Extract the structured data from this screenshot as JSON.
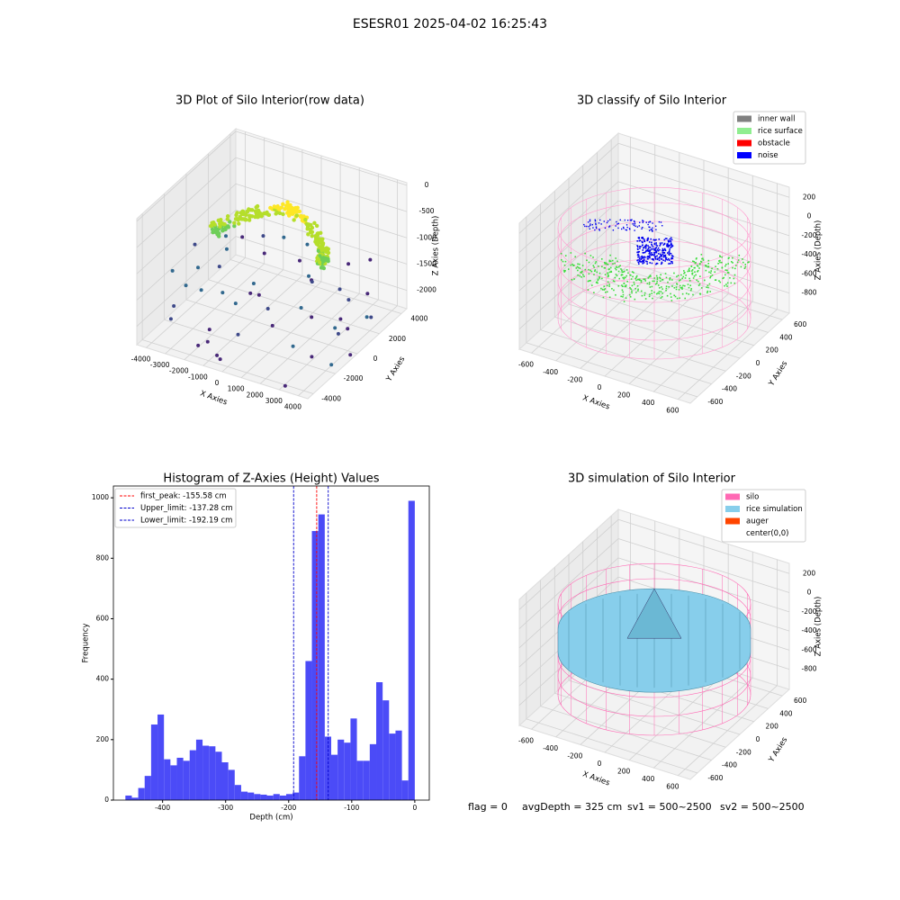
{
  "suptitle": "ESESR01 2025-04-02 16:25:43",
  "footer": [
    "flag = 0",
    "avgDepth = 325 cm",
    "sv1 = 500~2500",
    "sv2 = 500~2500"
  ],
  "chart_data": [
    {
      "type": "scatter3d",
      "title": "3D Plot of Silo Interior(row data)",
      "x_label": "X Axies",
      "y_label": "Y Axies",
      "z_label": "Z Axies (Depth)",
      "xlim": [
        -4500,
        4500
      ],
      "ylim": [
        -4500,
        4500
      ],
      "zlim": [
        -2350,
        50
      ],
      "xticks": [
        -4000,
        -3000,
        -2000,
        -1000,
        0,
        1000,
        2000,
        3000,
        4000
      ],
      "yticks": [
        -4000,
        -2000,
        0,
        2000,
        4000
      ],
      "zticks": [
        0,
        -500,
        -1000,
        -1500,
        -2000
      ]
    },
    {
      "type": "classify3d",
      "title": "3D classify of Silo Interior",
      "x_label": "X Axies",
      "y_label": "Y Axies",
      "z_label": "Z Axies (Depth)",
      "xlim": [
        -700,
        700
      ],
      "ylim": [
        -700,
        700
      ],
      "zlim": [
        -1010,
        306
      ],
      "xticks": [
        -600,
        -400,
        -200,
        0,
        200,
        400,
        600
      ],
      "yticks": [
        -600,
        -400,
        -200,
        0,
        200,
        400,
        600
      ],
      "zticks": [
        200,
        0,
        -200,
        -400,
        -600,
        -800
      ],
      "legend": [
        {
          "name": "inner wall",
          "color": "#808080"
        },
        {
          "name": "rice surface",
          "color": "#90ee90"
        },
        {
          "name": "obstacle",
          "color": "#ff0000"
        },
        {
          "name": "noise",
          "color": "#0000ff"
        }
      ]
    },
    {
      "type": "histogram",
      "title": "Histogram of Z-Axies (Height) Values",
      "x_label": "Depth (cm)",
      "y_label": "Frequency",
      "color": "#4b4bf7",
      "bins": [
        -459,
        -448.8,
        -438.6,
        -428.4,
        -418.2,
        -408,
        -397.8,
        -387.6,
        -377.4,
        -367.2,
        -357,
        -346.8,
        -336.6,
        -326.4,
        -316.2,
        -306,
        -295.8,
        -285.6,
        -275.4,
        -265.2,
        -255,
        -244.8,
        -234.6,
        -224.4,
        -214.2,
        -204,
        -193.8,
        -183.6,
        -173.4,
        -163.2,
        -153,
        -142.8,
        -132.6,
        -122.4,
        -112.2,
        -102,
        -91.8,
        -81.6,
        -71.4,
        -61.2,
        -51,
        -40.8,
        -30.6,
        -20.4,
        -10.2,
        0
      ],
      "values": [
        15,
        8,
        40,
        80,
        250,
        283,
        135,
        115,
        140,
        130,
        165,
        200,
        180,
        178,
        160,
        125,
        100,
        50,
        28,
        25,
        20,
        18,
        15,
        20,
        15,
        20,
        25,
        145,
        460,
        890,
        945,
        210,
        150,
        200,
        190,
        270,
        130,
        130,
        185,
        390,
        330,
        220,
        230,
        65,
        990
      ],
      "xlim": [
        -478,
        23
      ],
      "ylim": [
        0,
        1039
      ],
      "xticks": [
        -400,
        -300,
        -200,
        -100,
        0
      ],
      "yticks": [
        0,
        200,
        400,
        600,
        800,
        1000
      ],
      "lines": [
        {
          "label": "first_peak: -155.58 cm",
          "value": -155.58,
          "color": "#ff0000"
        },
        {
          "label": "Upper_limit: -137.28 cm",
          "value": -137.28,
          "color": "#0000cc"
        },
        {
          "label": "Lower_limit: -192.19 cm",
          "value": -192.19,
          "color": "#0000cc"
        }
      ]
    },
    {
      "type": "surface3d",
      "title": "3D simulation of Silo Interior",
      "x_label": "X Axies",
      "y_label": "Y Axies",
      "z_label": "Z Axies (Depth)",
      "xlim": [
        -700,
        700
      ],
      "ylim": [
        -700,
        700
      ],
      "zlim": [
        -1010,
        306
      ],
      "xticks": [
        -600,
        -400,
        -200,
        0,
        200,
        400,
        600
      ],
      "yticks": [
        -600,
        -400,
        -200,
        0,
        200,
        400,
        600
      ],
      "zticks": [
        200,
        0,
        -200,
        -400,
        -600,
        -800
      ],
      "legend": [
        {
          "name": "silo",
          "color": "#ff69b4"
        },
        {
          "name": "rice simulation",
          "color": "#87ceeb"
        },
        {
          "name": "auger",
          "color": "#ff4500"
        },
        {
          "name": "center(0,0)",
          "color": "#ffffff"
        }
      ]
    }
  ]
}
